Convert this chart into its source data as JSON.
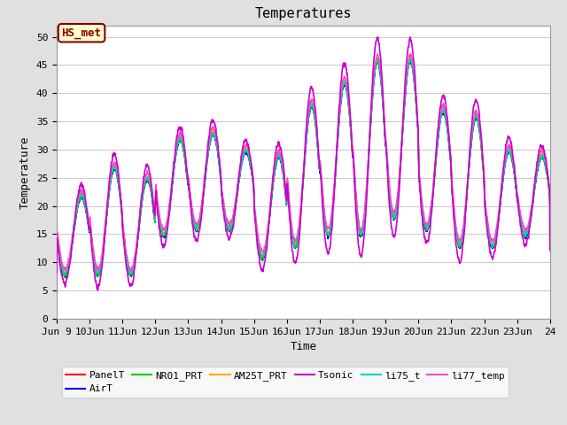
{
  "title": "Temperatures",
  "xlabel": "Time",
  "ylabel": "Temperature",
  "ylim": [
    0,
    52
  ],
  "yticks": [
    0,
    5,
    10,
    15,
    20,
    25,
    30,
    35,
    40,
    45,
    50
  ],
  "fig_bg_color": "#e0e0e0",
  "plot_bg_color": "#ffffff",
  "annotation_text": "HS_met",
  "annotation_bg": "#ffffcc",
  "annotation_border": "#880000",
  "series": {
    "PanelT": {
      "color": "#ff0000",
      "lw": 1.0,
      "zorder": 4
    },
    "AirT": {
      "color": "#0000dd",
      "lw": 1.0,
      "zorder": 4
    },
    "NR01_PRT": {
      "color": "#00cc00",
      "lw": 1.0,
      "zorder": 4
    },
    "AM25T_PRT": {
      "color": "#ffaa00",
      "lw": 1.0,
      "zorder": 4
    },
    "Tsonic": {
      "color": "#cc00cc",
      "lw": 1.2,
      "zorder": 5
    },
    "li75_t": {
      "color": "#00cccc",
      "lw": 1.0,
      "zorder": 4
    },
    "li77_temp": {
      "color": "#ff44cc",
      "lw": 1.0,
      "zorder": 4
    }
  },
  "day_profiles": {
    "0": {
      "dmin": 8,
      "dmax": 22
    },
    "1": {
      "dmin": 8,
      "dmax": 27
    },
    "2": {
      "dmin": 8,
      "dmax": 25
    },
    "3": {
      "dmin": 15,
      "dmax": 32
    },
    "4": {
      "dmin": 16,
      "dmax": 33
    },
    "5": {
      "dmin": 16,
      "dmax": 30
    },
    "6": {
      "dmin": 11,
      "dmax": 29
    },
    "7": {
      "dmin": 13,
      "dmax": 38
    },
    "8": {
      "dmin": 15,
      "dmax": 42
    },
    "9": {
      "dmin": 15,
      "dmax": 46
    },
    "10": {
      "dmin": 18,
      "dmax": 46
    },
    "11": {
      "dmin": 16,
      "dmax": 37
    },
    "12": {
      "dmin": 13,
      "dmax": 36
    },
    "13": {
      "dmin": 13,
      "dmax": 30
    },
    "14": {
      "dmin": 15,
      "dmax": 29
    }
  },
  "num_days": 15,
  "start_day": 9,
  "points_per_day": 144,
  "grid_color": "#cccccc",
  "tick_fontsize": 8,
  "label_fontsize": 9,
  "title_fontsize": 11
}
